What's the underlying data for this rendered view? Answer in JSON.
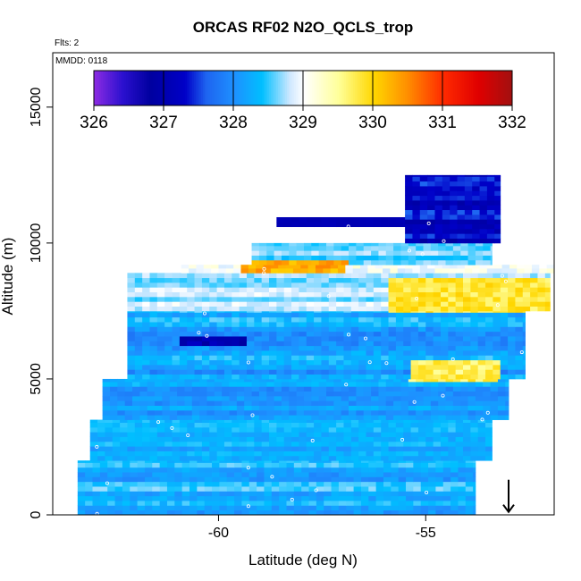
{
  "chart_data": {
    "type": "heatmap",
    "title": "ORCAS RF02 N2O_QCLS_trop",
    "xlabel": "Latitude (deg N)",
    "ylabel": "Altitude (m)",
    "annotations": {
      "flights": "Flts: 2",
      "date": "MMDD: 0118"
    },
    "xlim": [
      -64.0,
      -51.9
    ],
    "ylim": [
      0,
      17000
    ],
    "x_ticks": [
      -60,
      -55
    ],
    "x_tick_labels": [
      "-60",
      "-55"
    ],
    "y_ticks": [
      0,
      5000,
      10000,
      15000
    ],
    "y_tick_labels": [
      "0",
      "5000",
      "10000",
      "15000"
    ],
    "colorbar": {
      "min": 326,
      "max": 332,
      "ticks": [
        326,
        327,
        328,
        329,
        330,
        331,
        332
      ],
      "tick_labels": [
        "326",
        "327",
        "328",
        "329",
        "330",
        "331",
        "332"
      ],
      "stops": [
        {
          "v": 326.0,
          "c": "#8a2be2"
        },
        {
          "v": 326.4,
          "c": "#2b10cf"
        },
        {
          "v": 326.8,
          "c": "#00009f"
        },
        {
          "v": 327.3,
          "c": "#0000c8"
        },
        {
          "v": 327.6,
          "c": "#1e64f0"
        },
        {
          "v": 328.0,
          "c": "#1e90ff"
        },
        {
          "v": 328.4,
          "c": "#00bfff"
        },
        {
          "v": 328.8,
          "c": "#cfe8ff"
        },
        {
          "v": 329.0,
          "c": "#ffffff"
        },
        {
          "v": 329.5,
          "c": "#ffff99"
        },
        {
          "v": 330.0,
          "c": "#ffd700"
        },
        {
          "v": 330.5,
          "c": "#ff8c00"
        },
        {
          "v": 331.0,
          "c": "#ff2a00"
        },
        {
          "v": 331.5,
          "c": "#e00000"
        },
        {
          "v": 332.0,
          "c": "#a01010"
        }
      ]
    },
    "marker": {
      "type": "down-arrow",
      "lat": -53.0,
      "alt": 700
    },
    "profiles": [
      {
        "start": -63.4,
        "end": -53.8,
        "alt_bottom": 0,
        "alt_top": 2000,
        "base": 328.3,
        "var": 0.35
      },
      {
        "start": -63.1,
        "end": -53.4,
        "alt_bottom": 2000,
        "alt_top": 3500,
        "base": 328.2,
        "var": 0.3
      },
      {
        "start": -62.8,
        "end": -53.0,
        "alt_bottom": 3500,
        "alt_top": 5000,
        "base": 328.1,
        "var": 0.3
      },
      {
        "start": -62.2,
        "end": -52.6,
        "alt_bottom": 5000,
        "alt_top": 7500,
        "base": 328.2,
        "var": 0.4
      },
      {
        "start": -62.2,
        "end": -52.0,
        "alt_bottom": 7500,
        "alt_top": 8900,
        "base": 328.7,
        "var": 0.3
      },
      {
        "start": -60.9,
        "end": -51.9,
        "alt_bottom": 8900,
        "alt_top": 9200,
        "base": 328.8,
        "var": 0.4
      },
      {
        "start": -59.2,
        "end": -53.4,
        "alt_bottom": 9200,
        "alt_top": 10000,
        "base": 328.5,
        "var": 0.3
      },
      {
        "start": -58.6,
        "end": -54.5,
        "alt_bottom": 10600,
        "alt_top": 10950,
        "base": 327.0,
        "var": 0.1
      },
      {
        "start": -55.5,
        "end": -53.2,
        "alt_bottom": 10000,
        "alt_top": 12500,
        "base": 327.2,
        "var": 0.4
      }
    ],
    "features": [
      {
        "name": "warm upper band",
        "lat_min": -56.0,
        "lat_max": -52.0,
        "alt_min": 7400,
        "alt_max": 8700,
        "value": 329.8
      },
      {
        "name": "warm mid tongue",
        "lat_min": -55.5,
        "lat_max": -53.3,
        "alt_min": 4900,
        "alt_max": 5600,
        "value": 329.7
      },
      {
        "name": "warm top streak",
        "lat_min": -59.5,
        "lat_max": -57.0,
        "alt_min": 8900,
        "alt_max": 9200,
        "value": 330.3
      },
      {
        "name": "low feature",
        "lat_min": -61.0,
        "lat_max": -59.4,
        "alt_min": 6200,
        "alt_max": 6500,
        "value": 327.0
      }
    ]
  }
}
